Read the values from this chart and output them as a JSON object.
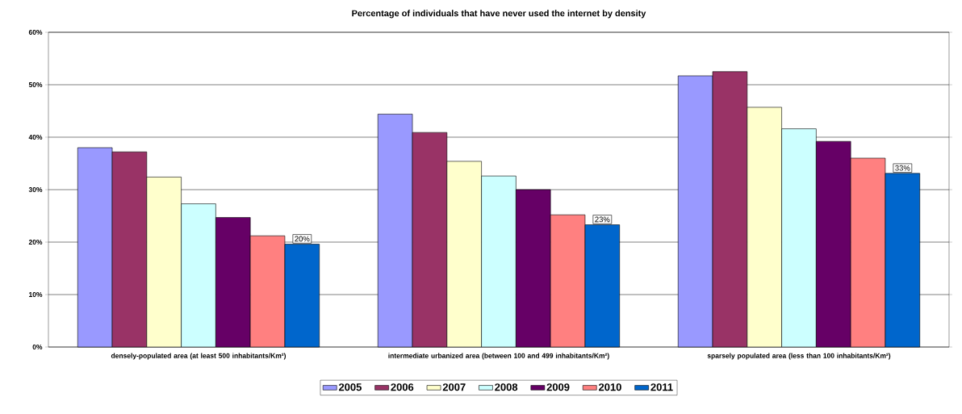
{
  "chart_data": {
    "type": "bar",
    "title": "Percentage of individuals that have never used the internet by density",
    "categories": [
      "densely-populated area (at least 500 inhabitants/Km²)",
      "intermediate urbanized area (between 100 and 499 inhabitants/Km²)",
      "sparsely populated area (less than 100 inhabitants/Km²)"
    ],
    "series": [
      {
        "name": "2005",
        "color": "#9999ff",
        "values": [
          38.0,
          44.4,
          51.7
        ]
      },
      {
        "name": "2006",
        "color": "#993366",
        "values": [
          37.2,
          40.9,
          52.5
        ]
      },
      {
        "name": "2007",
        "color": "#ffffcc",
        "values": [
          32.4,
          35.4,
          45.7
        ]
      },
      {
        "name": "2008",
        "color": "#ccffff",
        "values": [
          27.3,
          32.6,
          41.6
        ]
      },
      {
        "name": "2009",
        "color": "#660066",
        "values": [
          24.7,
          30.0,
          39.2
        ]
      },
      {
        "name": "2010",
        "color": "#ff8080",
        "values": [
          21.2,
          25.2,
          36.0
        ]
      },
      {
        "name": "2011",
        "color": "#0066cc",
        "values": [
          19.6,
          23.3,
          33.1
        ],
        "value_labels": [
          "20%",
          "23%",
          "33%"
        ]
      }
    ],
    "ylim": [
      0,
      60
    ],
    "yticks": [
      {
        "value": 0,
        "label": "0%"
      },
      {
        "value": 10,
        "label": "10%"
      },
      {
        "value": 20,
        "label": "20%"
      },
      {
        "value": 30,
        "label": "30%"
      },
      {
        "value": 40,
        "label": "40%"
      },
      {
        "value": 50,
        "label": "50%"
      },
      {
        "value": 60,
        "label": "60%"
      }
    ],
    "grid": "y",
    "legend": "bottom"
  }
}
